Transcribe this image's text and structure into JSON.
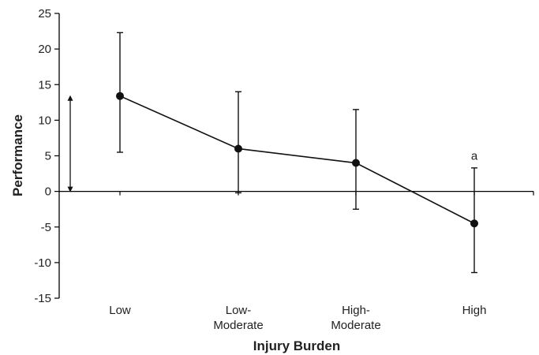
{
  "chart_data": {
    "type": "line",
    "xlabel": "Injury Burden",
    "ylabel": "Performance",
    "ylim": [
      -15,
      25
    ],
    "yticks": [
      -15,
      -10,
      -5,
      0,
      5,
      10,
      15,
      20,
      25
    ],
    "categories": [
      [
        "Low"
      ],
      [
        "Low-",
        "Moderate"
      ],
      [
        "High-",
        "Moderate"
      ],
      [
        "High"
      ]
    ],
    "series": [
      {
        "values": [
          13.4,
          6.0,
          4.0,
          -4.5
        ],
        "error_upper": [
          22.3,
          14.0,
          11.5,
          3.3
        ],
        "error_lower": [
          5.5,
          -0.2,
          -2.5,
          -11.4
        ]
      }
    ],
    "annotations": [
      {
        "text": "a",
        "category_index": 3,
        "y": 5.0
      }
    ],
    "range_arrow": {
      "from": 0,
      "to": 13.4
    },
    "grid": false
  }
}
